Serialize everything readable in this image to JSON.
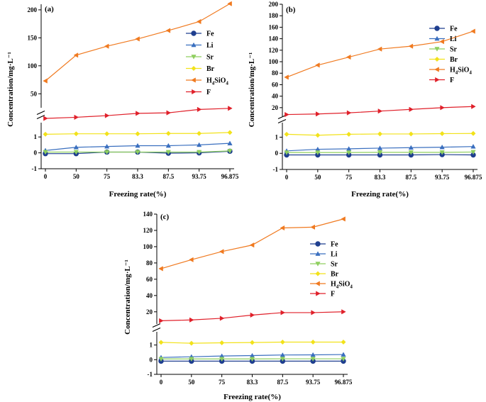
{
  "colors": {
    "Fe": "#1f3f8f",
    "Li": "#3a6fbf",
    "Sr": "#8fcf5f",
    "Br": "#f2e21a",
    "H4SiO4": "#f07a20",
    "F": "#e0202a"
  },
  "chart_data": [
    {
      "type": "line",
      "panel": "(a)",
      "xlabel": "Freezing rate(%)",
      "ylabel": "Concentration/mg·L⁻¹",
      "categories": [
        "0",
        "50",
        "75",
        "83.3",
        "87.5",
        "93.75",
        "96.875"
      ],
      "upper_ylim": [
        25,
        210
      ],
      "upper_ticks": [
        50,
        100,
        150,
        200
      ],
      "lower_ylim": [
        -1,
        1.9
      ],
      "lower_ticks": [
        -1,
        0,
        1
      ],
      "legend_position": "right",
      "series": [
        {
          "name": "Fe",
          "label_main": "Fe",
          "label_sub": "",
          "label_tail": "",
          "marker": "circle",
          "values": [
            -0.05,
            -0.05,
            0.05,
            0.05,
            -0.02,
            0.0,
            0.1
          ]
        },
        {
          "name": "Li",
          "label_main": "Li",
          "label_sub": "",
          "label_tail": "",
          "marker": "triangle-up",
          "values": [
            0.15,
            0.35,
            0.4,
            0.45,
            0.45,
            0.5,
            0.6
          ]
        },
        {
          "name": "Sr",
          "label_main": "Sr",
          "label_sub": "",
          "label_tail": "",
          "marker": "triangle-down",
          "values": [
            0.05,
            0.05,
            0.05,
            0.05,
            0.05,
            0.05,
            0.12
          ]
        },
        {
          "name": "Br",
          "label_main": "Br",
          "label_sub": "",
          "label_tail": "",
          "marker": "diamond",
          "values": [
            1.17,
            1.2,
            1.2,
            1.2,
            1.22,
            1.22,
            1.28
          ]
        },
        {
          "name": "H4SiO4",
          "label_main": "H",
          "label_sub": "4",
          "label_tail": "SiO",
          "label_sub2": "4",
          "marker": "triangle-left",
          "values": [
            73,
            119,
            135,
            148,
            163,
            179,
            211
          ]
        },
        {
          "name": "F",
          "label_main": "F",
          "label_sub": "",
          "label_tail": "",
          "marker": "triangle-right",
          "values": [
            6,
            8,
            11,
            15,
            16,
            22,
            24
          ]
        }
      ]
    },
    {
      "type": "line",
      "panel": "(b)",
      "xlabel": "Freezing rate(%)",
      "ylabel": "Concentration/mg·L⁻¹",
      "categories": [
        "0",
        "50",
        "75",
        "83.3",
        "87.5",
        "93.75",
        "96.875"
      ],
      "upper_ylim": [
        5,
        200
      ],
      "upper_ticks": [
        20,
        40,
        60,
        80,
        100,
        120,
        140,
        160,
        180,
        200
      ],
      "lower_ylim": [
        -1,
        1.9
      ],
      "lower_ticks": [
        -1,
        0,
        1
      ],
      "legend_position": "right",
      "series": [
        {
          "name": "Fe",
          "label_main": "Fe",
          "label_sub": "",
          "label_tail": "",
          "marker": "circle",
          "values": [
            -0.1,
            -0.1,
            -0.1,
            -0.1,
            -0.1,
            -0.08,
            -0.1
          ]
        },
        {
          "name": "Li",
          "label_main": "Li",
          "label_sub": "",
          "label_tail": "",
          "marker": "triangle-up",
          "values": [
            0.15,
            0.25,
            0.28,
            0.32,
            0.35,
            0.38,
            0.42
          ]
        },
        {
          "name": "Sr",
          "label_main": "Sr",
          "label_sub": "",
          "label_tail": "",
          "marker": "triangle-down",
          "values": [
            0.05,
            0.05,
            0.05,
            0.06,
            0.06,
            0.06,
            0.08
          ]
        },
        {
          "name": "Br",
          "label_main": "Br",
          "label_sub": "",
          "label_tail": "",
          "marker": "diamond",
          "values": [
            1.18,
            1.12,
            1.18,
            1.2,
            1.2,
            1.22,
            1.23
          ]
        },
        {
          "name": "H4SiO4",
          "label_main": "H",
          "label_sub": "4",
          "label_tail": "SiO",
          "label_sub2": "4",
          "marker": "triangle-left",
          "values": [
            73,
            94,
            108,
            122,
            127,
            135,
            153
          ]
        },
        {
          "name": "F",
          "label_main": "F",
          "label_sub": "",
          "label_tail": "",
          "marker": "triangle-right",
          "values": [
            8,
            9,
            11,
            14,
            17,
            20,
            22
          ]
        }
      ]
    },
    {
      "type": "line",
      "panel": "(c)",
      "xlabel": "Freezing rate(%)",
      "ylabel": "Concentration/mg·L⁻¹",
      "categories": [
        "0",
        "50",
        "75",
        "83.3",
        "87.5",
        "93.75",
        "96.875"
      ],
      "upper_ylim": [
        5,
        140
      ],
      "upper_ticks": [
        20,
        40,
        60,
        80,
        100,
        120,
        140
      ],
      "lower_ylim": [
        -1,
        1.9
      ],
      "lower_ticks": [
        -1,
        0,
        1
      ],
      "legend_position": "right",
      "series": [
        {
          "name": "Fe",
          "label_main": "Fe",
          "label_sub": "",
          "label_tail": "",
          "marker": "circle",
          "values": [
            -0.1,
            -0.1,
            -0.1,
            -0.1,
            -0.1,
            -0.1,
            -0.1
          ]
        },
        {
          "name": "Li",
          "label_main": "Li",
          "label_sub": "",
          "label_tail": "",
          "marker": "triangle-up",
          "values": [
            0.15,
            0.2,
            0.25,
            0.28,
            0.32,
            0.33,
            0.35
          ]
        },
        {
          "name": "Sr",
          "label_main": "Sr",
          "label_sub": "",
          "label_tail": "",
          "marker": "triangle-down",
          "values": [
            0.05,
            0.05,
            0.05,
            0.05,
            0.06,
            0.06,
            0.06
          ]
        },
        {
          "name": "Br",
          "label_main": "Br",
          "label_sub": "",
          "label_tail": "",
          "marker": "diamond",
          "values": [
            1.18,
            1.12,
            1.15,
            1.17,
            1.2,
            1.2,
            1.2
          ]
        },
        {
          "name": "H4SiO4",
          "label_main": "H",
          "label_sub": "4",
          "label_tail": "SiO",
          "label_sub2": "4",
          "marker": "triangle-left",
          "values": [
            73,
            84,
            94,
            102,
            123,
            124,
            134
          ]
        },
        {
          "name": "F",
          "label_main": "F",
          "label_sub": "",
          "label_tail": "",
          "marker": "triangle-right",
          "values": [
            9,
            10,
            12,
            16,
            19,
            19,
            20
          ]
        }
      ]
    }
  ]
}
